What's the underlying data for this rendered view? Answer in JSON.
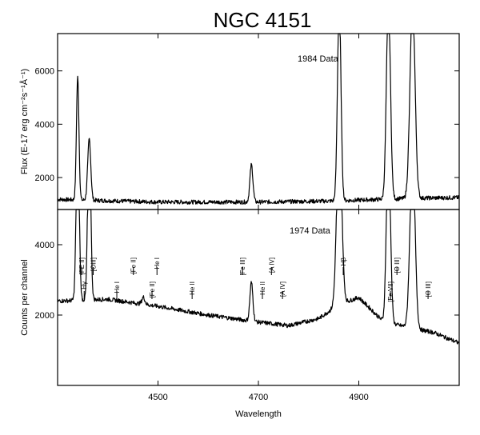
{
  "chart_data": [
    {
      "panel": "top",
      "type": "line",
      "title": "NGC 4151",
      "label": "1984 Data",
      "xlabel": "Wavelength",
      "ylabel": "Flux (E-17 erg cm⁻²s⁻¹Å⁻¹)",
      "xlim": [
        4300,
        5100
      ],
      "ylim": [
        800,
        7400
      ],
      "yticks": [
        2000,
        4000,
        6000
      ],
      "continuum": [
        [
          4300,
          1180
        ],
        [
          4500,
          1080
        ],
        [
          4700,
          1080
        ],
        [
          4850,
          1120
        ],
        [
          5000,
          1220
        ],
        [
          5100,
          1250
        ]
      ],
      "lines": [
        {
          "x": 4340,
          "peak": 4600,
          "width": 2.5
        },
        {
          "x": 4363,
          "peak": 2300,
          "width": 3
        },
        {
          "x": 4686,
          "peak": 1400,
          "width": 3
        },
        {
          "x": 4861,
          "peak": 7400,
          "width": 3.5
        },
        {
          "x": 4959,
          "peak": 7400,
          "width": 4
        },
        {
          "x": 5007,
          "peak": 7400,
          "width": 5
        }
      ]
    },
    {
      "panel": "bottom",
      "type": "line",
      "label": "1974 Data",
      "xlabel": "Wavelength",
      "ylabel": "Counts per channel",
      "xlim": [
        4300,
        5100
      ],
      "ylim": [
        0,
        5000
      ],
      "xticks": [
        4500,
        4700,
        4900
      ],
      "yticks": [
        2000,
        4000
      ],
      "continuum": [
        [
          4300,
          2400
        ],
        [
          4400,
          2450
        ],
        [
          4500,
          2250
        ],
        [
          4600,
          2000
        ],
        [
          4700,
          1800
        ],
        [
          4760,
          1700
        ],
        [
          4820,
          1900
        ],
        [
          4860,
          2300
        ],
        [
          4900,
          2500
        ],
        [
          4950,
          1800
        ],
        [
          5050,
          1500
        ],
        [
          5100,
          1200
        ]
      ],
      "lines": [
        {
          "x": 4340,
          "peak": 5000,
          "width": 3
        },
        {
          "x": 4363,
          "peak": 5000,
          "width": 3
        },
        {
          "x": 4471,
          "peak": 200,
          "width": 3
        },
        {
          "x": 4686,
          "peak": 1100,
          "width": 3
        },
        {
          "x": 4861,
          "peak": 5000,
          "width": 5
        },
        {
          "x": 4959,
          "peak": 5000,
          "width": 4
        },
        {
          "x": 5007,
          "peak": 5000,
          "width": 5
        }
      ],
      "annotations": [
        {
          "text": "[FE II]",
          "x": 4340
        },
        {
          "text": "Hγ",
          "x": 4345
        },
        {
          "text": "[OIII]",
          "x": 4363
        },
        {
          "text": "He I",
          "x": 4410
        },
        {
          "text": "[Fe II]",
          "x": 4443
        },
        {
          "text": "[Fe II]",
          "x": 4480
        },
        {
          "text": "He I",
          "x": 4490
        },
        {
          "text": "He II",
          "x": 4560
        },
        {
          "text": "[Fe III]",
          "x": 4660
        },
        {
          "text": "He II",
          "x": 4700
        },
        {
          "text": "[A IV]",
          "x": 4718
        },
        {
          "text": "[A IV]",
          "x": 4740
        },
        {
          "text": "Hβ",
          "x": 4861
        },
        {
          "text": "[Fe VII]",
          "x": 4955
        },
        {
          "text": "[O III]",
          "x": 4968
        },
        {
          "text": "[O III]",
          "x": 5030
        }
      ]
    }
  ]
}
